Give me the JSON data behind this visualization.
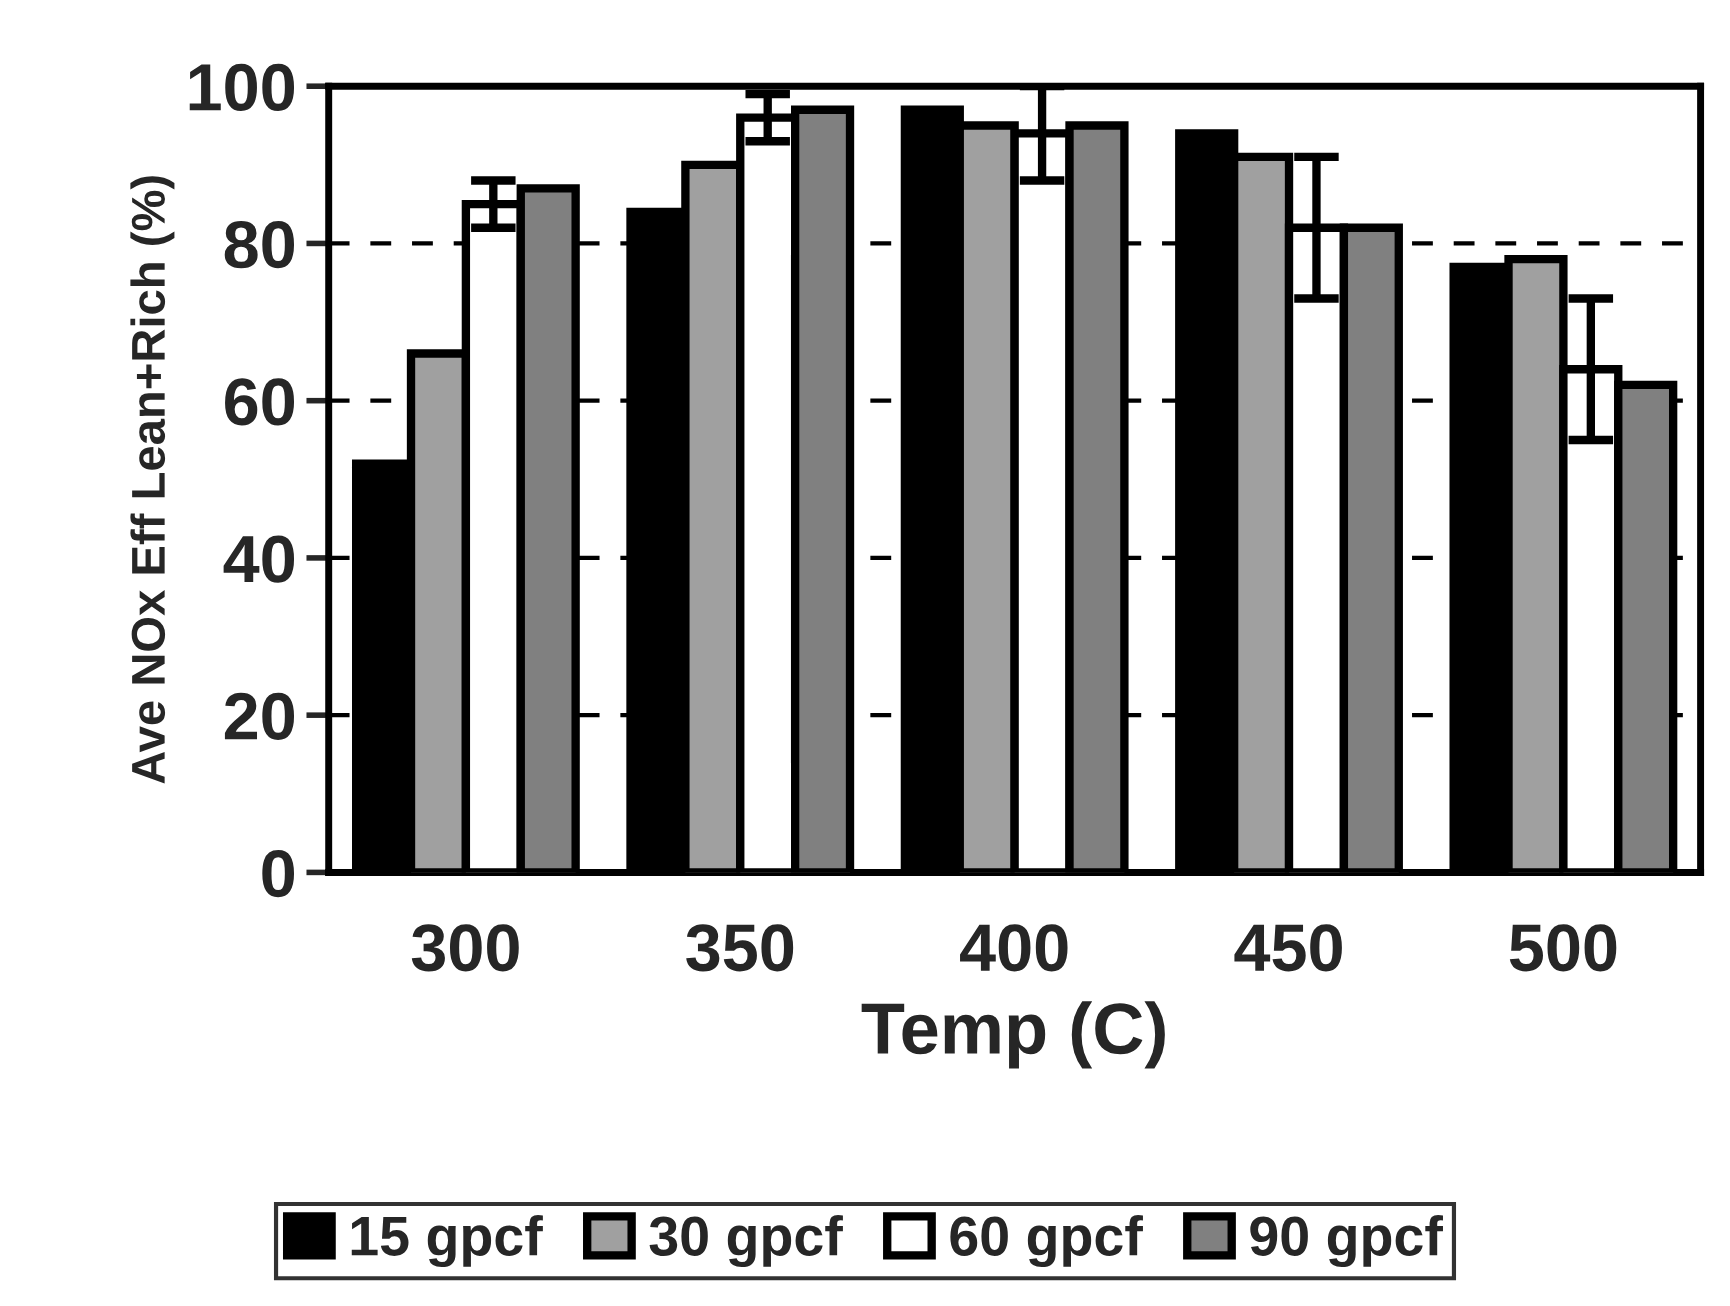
{
  "chart_data": {
    "type": "bar",
    "xlabel": "Temp (C)",
    "ylabel": "Ave NOx Eff Lean+Rich (%)",
    "categories": [
      "300",
      "350",
      "400",
      "450",
      "500"
    ],
    "series": [
      {
        "name": "15 gpcf",
        "color": "#000000",
        "values": [
          52,
          84,
          97,
          94,
          77
        ]
      },
      {
        "name": "30 gpcf",
        "color": "#a0a0a0",
        "values": [
          66,
          90,
          95,
          91,
          78
        ]
      },
      {
        "name": "60 gpcf",
        "color": "#ffffff",
        "values": [
          85,
          96,
          94,
          82,
          64
        ],
        "errors": [
          3,
          3,
          6,
          9,
          9
        ]
      },
      {
        "name": "90 gpcf",
        "color": "#808080",
        "values": [
          87,
          97,
          95,
          82,
          62
        ]
      }
    ],
    "ylim": [
      0,
      100
    ],
    "yticks": [
      0,
      20,
      40,
      60,
      80,
      100
    ],
    "grid": "y",
    "legend": "bottom"
  }
}
